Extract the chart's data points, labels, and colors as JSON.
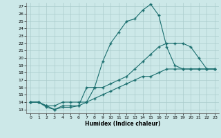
{
  "title": "",
  "xlabel": "Humidex (Indice chaleur)",
  "bg_color": "#cce8e8",
  "grid_color": "#aacccc",
  "line_color": "#1a6e6e",
  "xlim": [
    -0.5,
    23.5
  ],
  "ylim": [
    12.5,
    27.5
  ],
  "xticks": [
    0,
    1,
    2,
    3,
    4,
    5,
    6,
    7,
    8,
    9,
    10,
    11,
    12,
    13,
    14,
    15,
    16,
    17,
    18,
    19,
    20,
    21,
    22,
    23
  ],
  "yticks": [
    13,
    14,
    15,
    16,
    17,
    18,
    19,
    20,
    21,
    22,
    23,
    24,
    25,
    26,
    27
  ],
  "line1_x": [
    0,
    1,
    2,
    3,
    4,
    5,
    6,
    7,
    8,
    9,
    10,
    11,
    12,
    13,
    14,
    15,
    16,
    17,
    18,
    19,
    20,
    21,
    22,
    23
  ],
  "line1_y": [
    14.0,
    14.0,
    13.3,
    13.0,
    13.3,
    13.3,
    13.5,
    14.0,
    16.0,
    19.5,
    22.0,
    23.5,
    25.0,
    25.3,
    26.5,
    27.3,
    25.8,
    21.5,
    19.0,
    18.5,
    18.5,
    18.5,
    18.5,
    18.5
  ],
  "line2_x": [
    0,
    1,
    2,
    3,
    4,
    5,
    6,
    7,
    8,
    9,
    10,
    11,
    12,
    13,
    14,
    15,
    16,
    17,
    18,
    19,
    20,
    21,
    22,
    23
  ],
  "line2_y": [
    14.0,
    14.0,
    13.5,
    13.0,
    13.5,
    13.5,
    13.5,
    16.0,
    16.0,
    16.0,
    16.5,
    17.0,
    17.5,
    18.5,
    19.5,
    20.5,
    21.5,
    22.0,
    22.0,
    22.0,
    21.5,
    20.0,
    18.5,
    18.5
  ],
  "line3_x": [
    0,
    1,
    2,
    3,
    4,
    5,
    6,
    7,
    8,
    9,
    10,
    11,
    12,
    13,
    14,
    15,
    16,
    17,
    18,
    19,
    20,
    21,
    22,
    23
  ],
  "line3_y": [
    14.0,
    14.0,
    13.5,
    13.5,
    14.0,
    14.0,
    14.0,
    14.0,
    14.5,
    15.0,
    15.5,
    16.0,
    16.5,
    17.0,
    17.5,
    17.5,
    18.0,
    18.5,
    18.5,
    18.5,
    18.5,
    18.5,
    18.5,
    18.5
  ]
}
